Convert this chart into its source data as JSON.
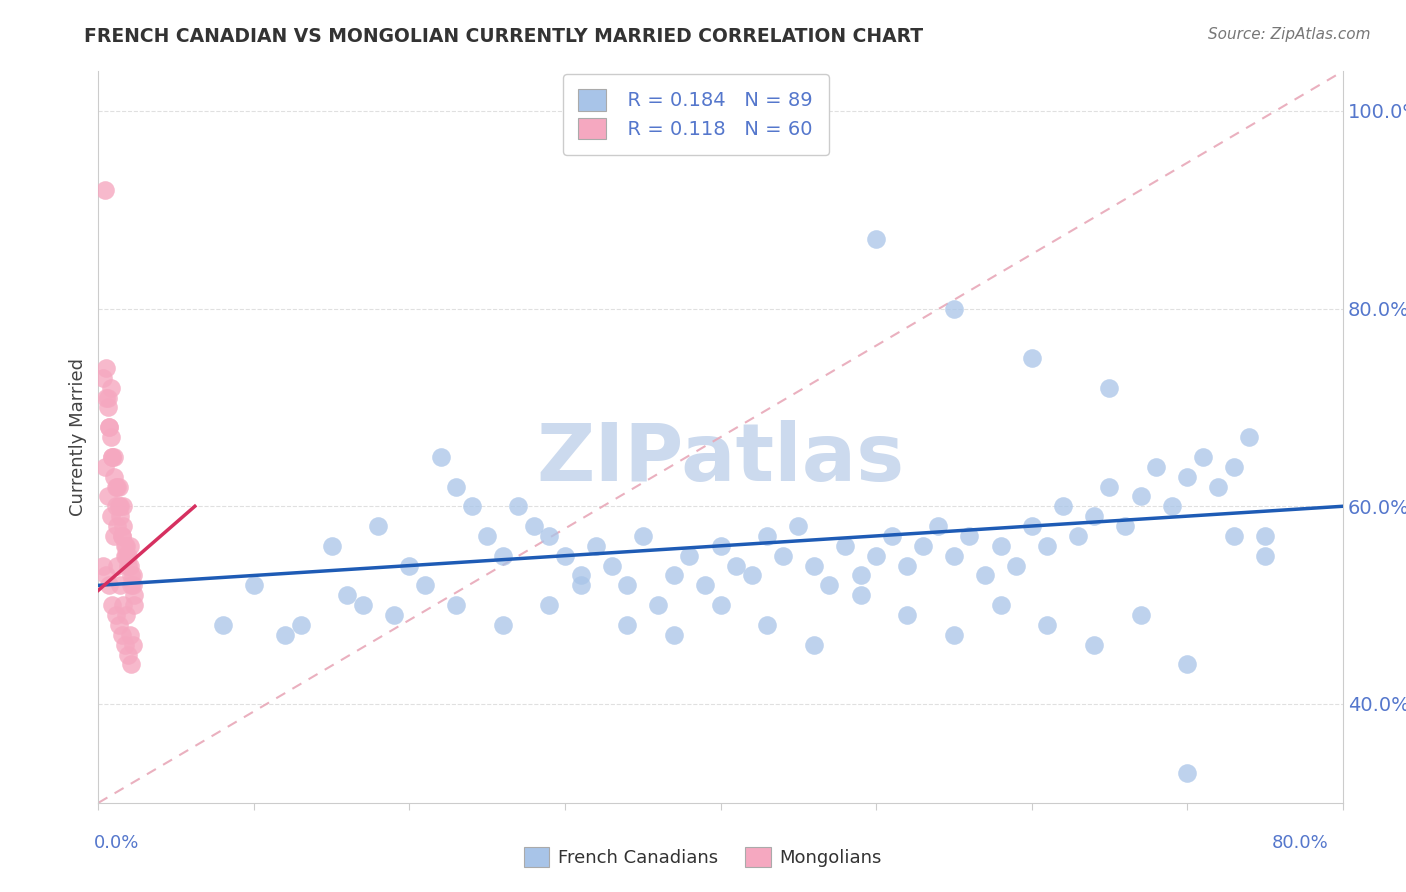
{
  "title": "FRENCH CANADIAN VS MONGOLIAN CURRENTLY MARRIED CORRELATION CHART",
  "source": "Source: ZipAtlas.com",
  "ylabel": "Currently Married",
  "xlim": [
    0.0,
    0.8
  ],
  "ylim": [
    0.3,
    1.04
  ],
  "yticks": [
    0.4,
    0.6,
    0.8,
    1.0
  ],
  "legend_r1": "R = 0.184",
  "legend_n1": "N = 89",
  "legend_r2": "R = 0.118",
  "legend_n2": "N = 60",
  "blue_color": "#a8c4e8",
  "pink_color": "#f5a8c0",
  "blue_line_color": "#1e5bb5",
  "pink_line_color": "#d63060",
  "diag_color": "#e8a8b8",
  "axis_label_color": "#5577cc",
  "watermark_color": "#ccdaee",
  "fc_x": [
    0.08,
    0.12,
    0.15,
    0.17,
    0.18,
    0.2,
    0.22,
    0.23,
    0.24,
    0.25,
    0.26,
    0.27,
    0.28,
    0.29,
    0.3,
    0.31,
    0.32,
    0.33,
    0.34,
    0.35,
    0.36,
    0.37,
    0.38,
    0.39,
    0.4,
    0.41,
    0.42,
    0.43,
    0.44,
    0.45,
    0.46,
    0.47,
    0.48,
    0.49,
    0.5,
    0.51,
    0.52,
    0.53,
    0.54,
    0.55,
    0.56,
    0.57,
    0.58,
    0.59,
    0.6,
    0.61,
    0.62,
    0.63,
    0.64,
    0.65,
    0.66,
    0.67,
    0.68,
    0.69,
    0.7,
    0.71,
    0.72,
    0.73,
    0.74,
    0.75,
    0.1,
    0.13,
    0.16,
    0.19,
    0.21,
    0.23,
    0.26,
    0.29,
    0.31,
    0.34,
    0.37,
    0.4,
    0.43,
    0.46,
    0.49,
    0.52,
    0.55,
    0.58,
    0.61,
    0.64,
    0.67,
    0.7,
    0.73,
    0.5,
    0.55,
    0.6,
    0.65,
    0.7,
    0.75
  ],
  "fc_y": [
    0.48,
    0.47,
    0.56,
    0.5,
    0.58,
    0.54,
    0.65,
    0.62,
    0.6,
    0.57,
    0.55,
    0.6,
    0.58,
    0.57,
    0.55,
    0.53,
    0.56,
    0.54,
    0.52,
    0.57,
    0.5,
    0.53,
    0.55,
    0.52,
    0.56,
    0.54,
    0.53,
    0.57,
    0.55,
    0.58,
    0.54,
    0.52,
    0.56,
    0.53,
    0.55,
    0.57,
    0.54,
    0.56,
    0.58,
    0.55,
    0.57,
    0.53,
    0.56,
    0.54,
    0.58,
    0.56,
    0.6,
    0.57,
    0.59,
    0.62,
    0.58,
    0.61,
    0.64,
    0.6,
    0.63,
    0.65,
    0.62,
    0.64,
    0.67,
    0.57,
    0.52,
    0.48,
    0.51,
    0.49,
    0.52,
    0.5,
    0.48,
    0.5,
    0.52,
    0.48,
    0.47,
    0.5,
    0.48,
    0.46,
    0.51,
    0.49,
    0.47,
    0.5,
    0.48,
    0.46,
    0.49,
    0.44,
    0.57,
    0.87,
    0.8,
    0.75,
    0.72,
    0.33,
    0.55
  ],
  "mn_x": [
    0.004,
    0.005,
    0.006,
    0.007,
    0.008,
    0.009,
    0.01,
    0.011,
    0.012,
    0.013,
    0.014,
    0.015,
    0.016,
    0.017,
    0.018,
    0.019,
    0.02,
    0.021,
    0.022,
    0.023,
    0.003,
    0.006,
    0.008,
    0.01,
    0.012,
    0.014,
    0.016,
    0.018,
    0.02,
    0.022,
    0.005,
    0.007,
    0.009,
    0.011,
    0.013,
    0.015,
    0.017,
    0.019,
    0.021,
    0.023,
    0.004,
    0.006,
    0.008,
    0.01,
    0.012,
    0.014,
    0.016,
    0.018,
    0.02,
    0.022,
    0.003,
    0.005,
    0.007,
    0.009,
    0.011,
    0.013,
    0.015,
    0.017,
    0.019,
    0.021
  ],
  "mn_y": [
    0.92,
    0.74,
    0.71,
    0.68,
    0.72,
    0.65,
    0.63,
    0.6,
    0.58,
    0.62,
    0.6,
    0.57,
    0.58,
    0.55,
    0.55,
    0.54,
    0.56,
    0.52,
    0.53,
    0.5,
    0.73,
    0.7,
    0.67,
    0.65,
    0.62,
    0.59,
    0.6,
    0.56,
    0.54,
    0.52,
    0.71,
    0.68,
    0.65,
    0.62,
    0.6,
    0.57,
    0.56,
    0.55,
    0.53,
    0.51,
    0.64,
    0.61,
    0.59,
    0.57,
    0.54,
    0.52,
    0.5,
    0.49,
    0.47,
    0.46,
    0.54,
    0.53,
    0.52,
    0.5,
    0.49,
    0.48,
    0.47,
    0.46,
    0.45,
    0.44
  ]
}
